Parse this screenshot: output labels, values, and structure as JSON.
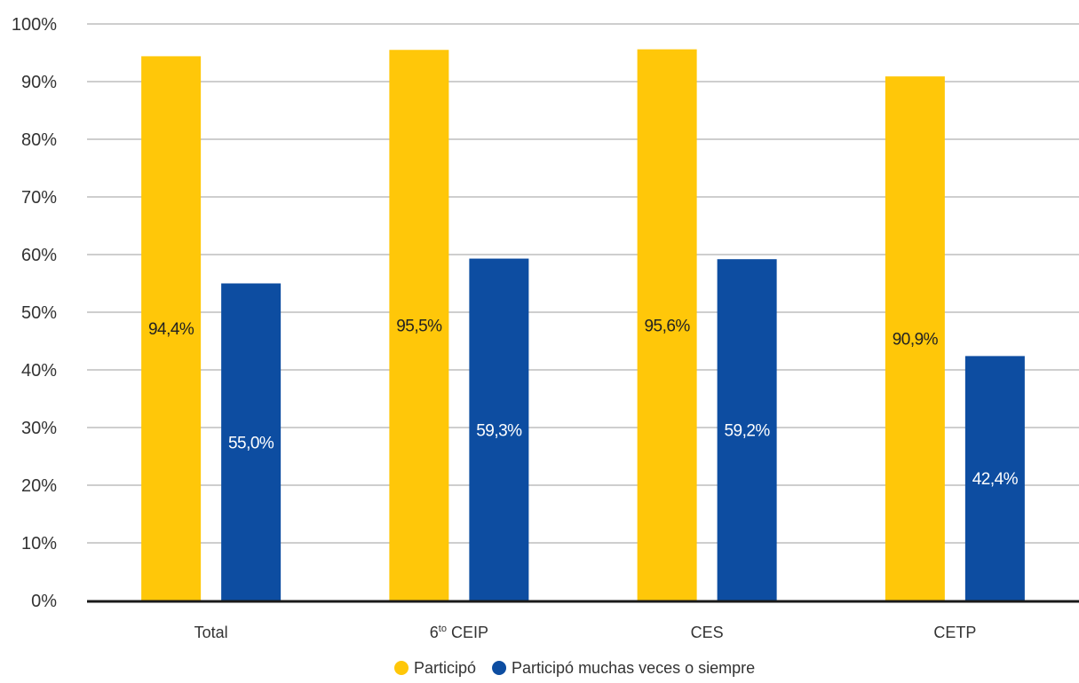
{
  "chart_data": {
    "type": "bar",
    "title": "",
    "xlabel": "",
    "ylabel": "",
    "ylim": [
      0,
      100
    ],
    "yticks": [
      0,
      10,
      20,
      30,
      40,
      50,
      60,
      70,
      80,
      90,
      100
    ],
    "ytick_labels": [
      "0%",
      "10%",
      "20%",
      "30%",
      "40%",
      "50%",
      "60%",
      "70%",
      "80%",
      "90%",
      "100%"
    ],
    "grid": true,
    "legend_position": "bottom",
    "categories": [
      {
        "label": "Total"
      },
      {
        "label": "6",
        "superscript": "to",
        "label_rest": " CEIP"
      },
      {
        "label": "CES"
      },
      {
        "label": "CETP"
      }
    ],
    "series": [
      {
        "name": "Participó",
        "color": "#FFC709",
        "label_color": "#222222",
        "values": [
          94.4,
          95.5,
          95.6,
          90.9
        ],
        "value_labels": [
          "94,4%",
          "95,5%",
          "95,6%",
          "90,9%"
        ]
      },
      {
        "name": "Participó muchas veces o siempre",
        "color": "#0D4DA1",
        "label_color": "#ffffff",
        "values": [
          55.0,
          59.3,
          59.2,
          42.4
        ],
        "value_labels": [
          "55,0%",
          "59,3%",
          "59,2%",
          "42,4%"
        ]
      }
    ]
  }
}
